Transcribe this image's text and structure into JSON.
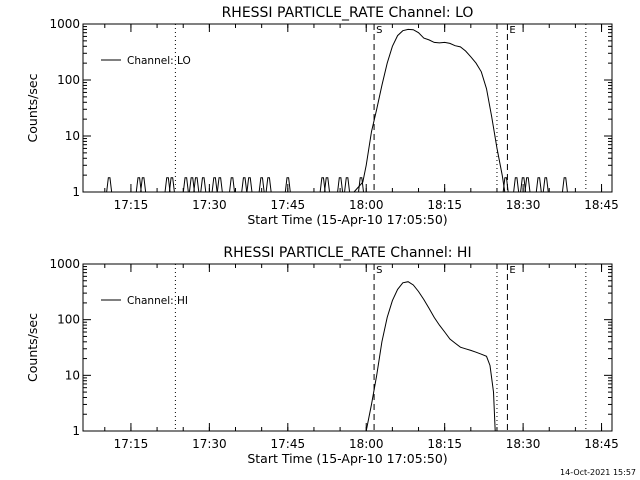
{
  "timestamp": "14-Oct-2021 15:57",
  "chart_data": [
    {
      "type": "line",
      "title": "RHESSI PARTICLE_RATE Channel: LO",
      "xlabel": "Start Time (15-Apr-10 17:05:50)",
      "ylabel": "Counts/sec",
      "yscale": "log",
      "ylim": [
        1,
        1000
      ],
      "xlim": [
        "17:05:50",
        "18:47:00"
      ],
      "x_ticks": [
        "17:15",
        "17:30",
        "17:45",
        "18:00",
        "18:15",
        "18:30",
        "18:45"
      ],
      "y_ticks": [
        "1",
        "10",
        "100",
        "1000"
      ],
      "legend": {
        "position": "top-left",
        "entries": [
          "Channel: LO"
        ]
      },
      "markers": [
        {
          "time": "17:23:30",
          "style": "dotted",
          "label": ""
        },
        {
          "time": "18:01:30",
          "style": "dashed",
          "label": "S"
        },
        {
          "time": "18:25:00",
          "style": "dotted",
          "label": ""
        },
        {
          "time": "18:27:00",
          "style": "dashed",
          "label": "E"
        },
        {
          "time": "18:42:00",
          "style": "dotted",
          "label": ""
        }
      ],
      "series": [
        {
          "name": "Channel: LO",
          "spikes": [
            "17:10:50",
            "17:16:30",
            "17:17:20",
            "17:22:00",
            "17:22:50",
            "17:25:30",
            "17:26:40",
            "17:27:30",
            "17:28:50",
            "17:31:00",
            "17:32:00",
            "17:34:20",
            "17:36:40",
            "17:37:40",
            "17:40:00",
            "17:41:20",
            "17:45:00",
            "17:51:40",
            "17:52:30",
            "17:55:00",
            "17:56:20",
            "17:59:00",
            "18:26:40",
            "18:28:40",
            "18:30:00",
            "18:30:50",
            "18:33:00",
            "18:34:20",
            "18:38:00"
          ],
          "spike_peak": 1.8,
          "points": [
            [
              "17:57:40",
              1
            ],
            [
              "17:59:20",
              1.5
            ],
            [
              "18:00:00",
              3
            ],
            [
              "18:01:00",
              12
            ],
            [
              "18:02:00",
              30
            ],
            [
              "18:03:00",
              80
            ],
            [
              "18:04:00",
              200
            ],
            [
              "18:05:00",
              400
            ],
            [
              "18:06:00",
              620
            ],
            [
              "18:07:00",
              760
            ],
            [
              "18:08:00",
              800
            ],
            [
              "18:09:00",
              790
            ],
            [
              "18:10:00",
              700
            ],
            [
              "18:11:00",
              560
            ],
            [
              "18:12:00",
              520
            ],
            [
              "18:13:00",
              470
            ],
            [
              "18:14:00",
              460
            ],
            [
              "18:15:00",
              470
            ],
            [
              "18:16:00",
              450
            ],
            [
              "18:17:00",
              410
            ],
            [
              "18:18:00",
              390
            ],
            [
              "18:19:00",
              330
            ],
            [
              "18:20:00",
              260
            ],
            [
              "18:21:00",
              200
            ],
            [
              "18:22:00",
              140
            ],
            [
              "18:23:00",
              70
            ],
            [
              "18:24:00",
              22
            ],
            [
              "18:25:00",
              6
            ],
            [
              "18:26:00",
              2
            ],
            [
              "18:26:30",
              1
            ]
          ]
        }
      ]
    },
    {
      "type": "line",
      "title": "RHESSI PARTICLE_RATE Channel: HI",
      "xlabel": "Start Time (15-Apr-10 17:05:50)",
      "ylabel": "Counts/sec",
      "yscale": "log",
      "ylim": [
        1,
        1000
      ],
      "xlim": [
        "17:05:50",
        "18:47:00"
      ],
      "x_ticks": [
        "17:15",
        "17:30",
        "17:45",
        "18:00",
        "18:15",
        "18:30",
        "18:45"
      ],
      "y_ticks": [
        "1",
        "10",
        "100",
        "1000"
      ],
      "legend": {
        "position": "top-left",
        "entries": [
          "Channel: HI"
        ]
      },
      "markers": [
        {
          "time": "17:23:30",
          "style": "dotted",
          "label": ""
        },
        {
          "time": "18:01:30",
          "style": "dashed",
          "label": "S"
        },
        {
          "time": "18:25:00",
          "style": "dotted",
          "label": ""
        },
        {
          "time": "18:27:00",
          "style": "dashed",
          "label": "E"
        },
        {
          "time": "18:42:00",
          "style": "dotted",
          "label": ""
        }
      ],
      "series": [
        {
          "name": "Channel: HI",
          "spikes": [],
          "spike_peak": 1,
          "points": [
            [
              "18:00:00",
              1
            ],
            [
              "18:01:00",
              3
            ],
            [
              "18:02:00",
              10
            ],
            [
              "18:03:00",
              40
            ],
            [
              "18:04:00",
              110
            ],
            [
              "18:05:00",
              220
            ],
            [
              "18:06:00",
              350
            ],
            [
              "18:07:00",
              460
            ],
            [
              "18:08:00",
              480
            ],
            [
              "18:09:00",
              420
            ],
            [
              "18:10:00",
              320
            ],
            [
              "18:11:00",
              230
            ],
            [
              "18:12:00",
              160
            ],
            [
              "18:13:00",
              110
            ],
            [
              "18:14:00",
              80
            ],
            [
              "18:15:00",
              60
            ],
            [
              "18:16:00",
              45
            ],
            [
              "18:17:00",
              38
            ],
            [
              "18:18:00",
              32
            ],
            [
              "18:19:00",
              30
            ],
            [
              "18:20:00",
              28
            ],
            [
              "18:21:00",
              26
            ],
            [
              "18:22:00",
              24
            ],
            [
              "18:23:00",
              22
            ],
            [
              "18:23:40",
              15
            ],
            [
              "18:24:20",
              5
            ],
            [
              "18:24:40",
              1
            ]
          ]
        }
      ]
    }
  ]
}
